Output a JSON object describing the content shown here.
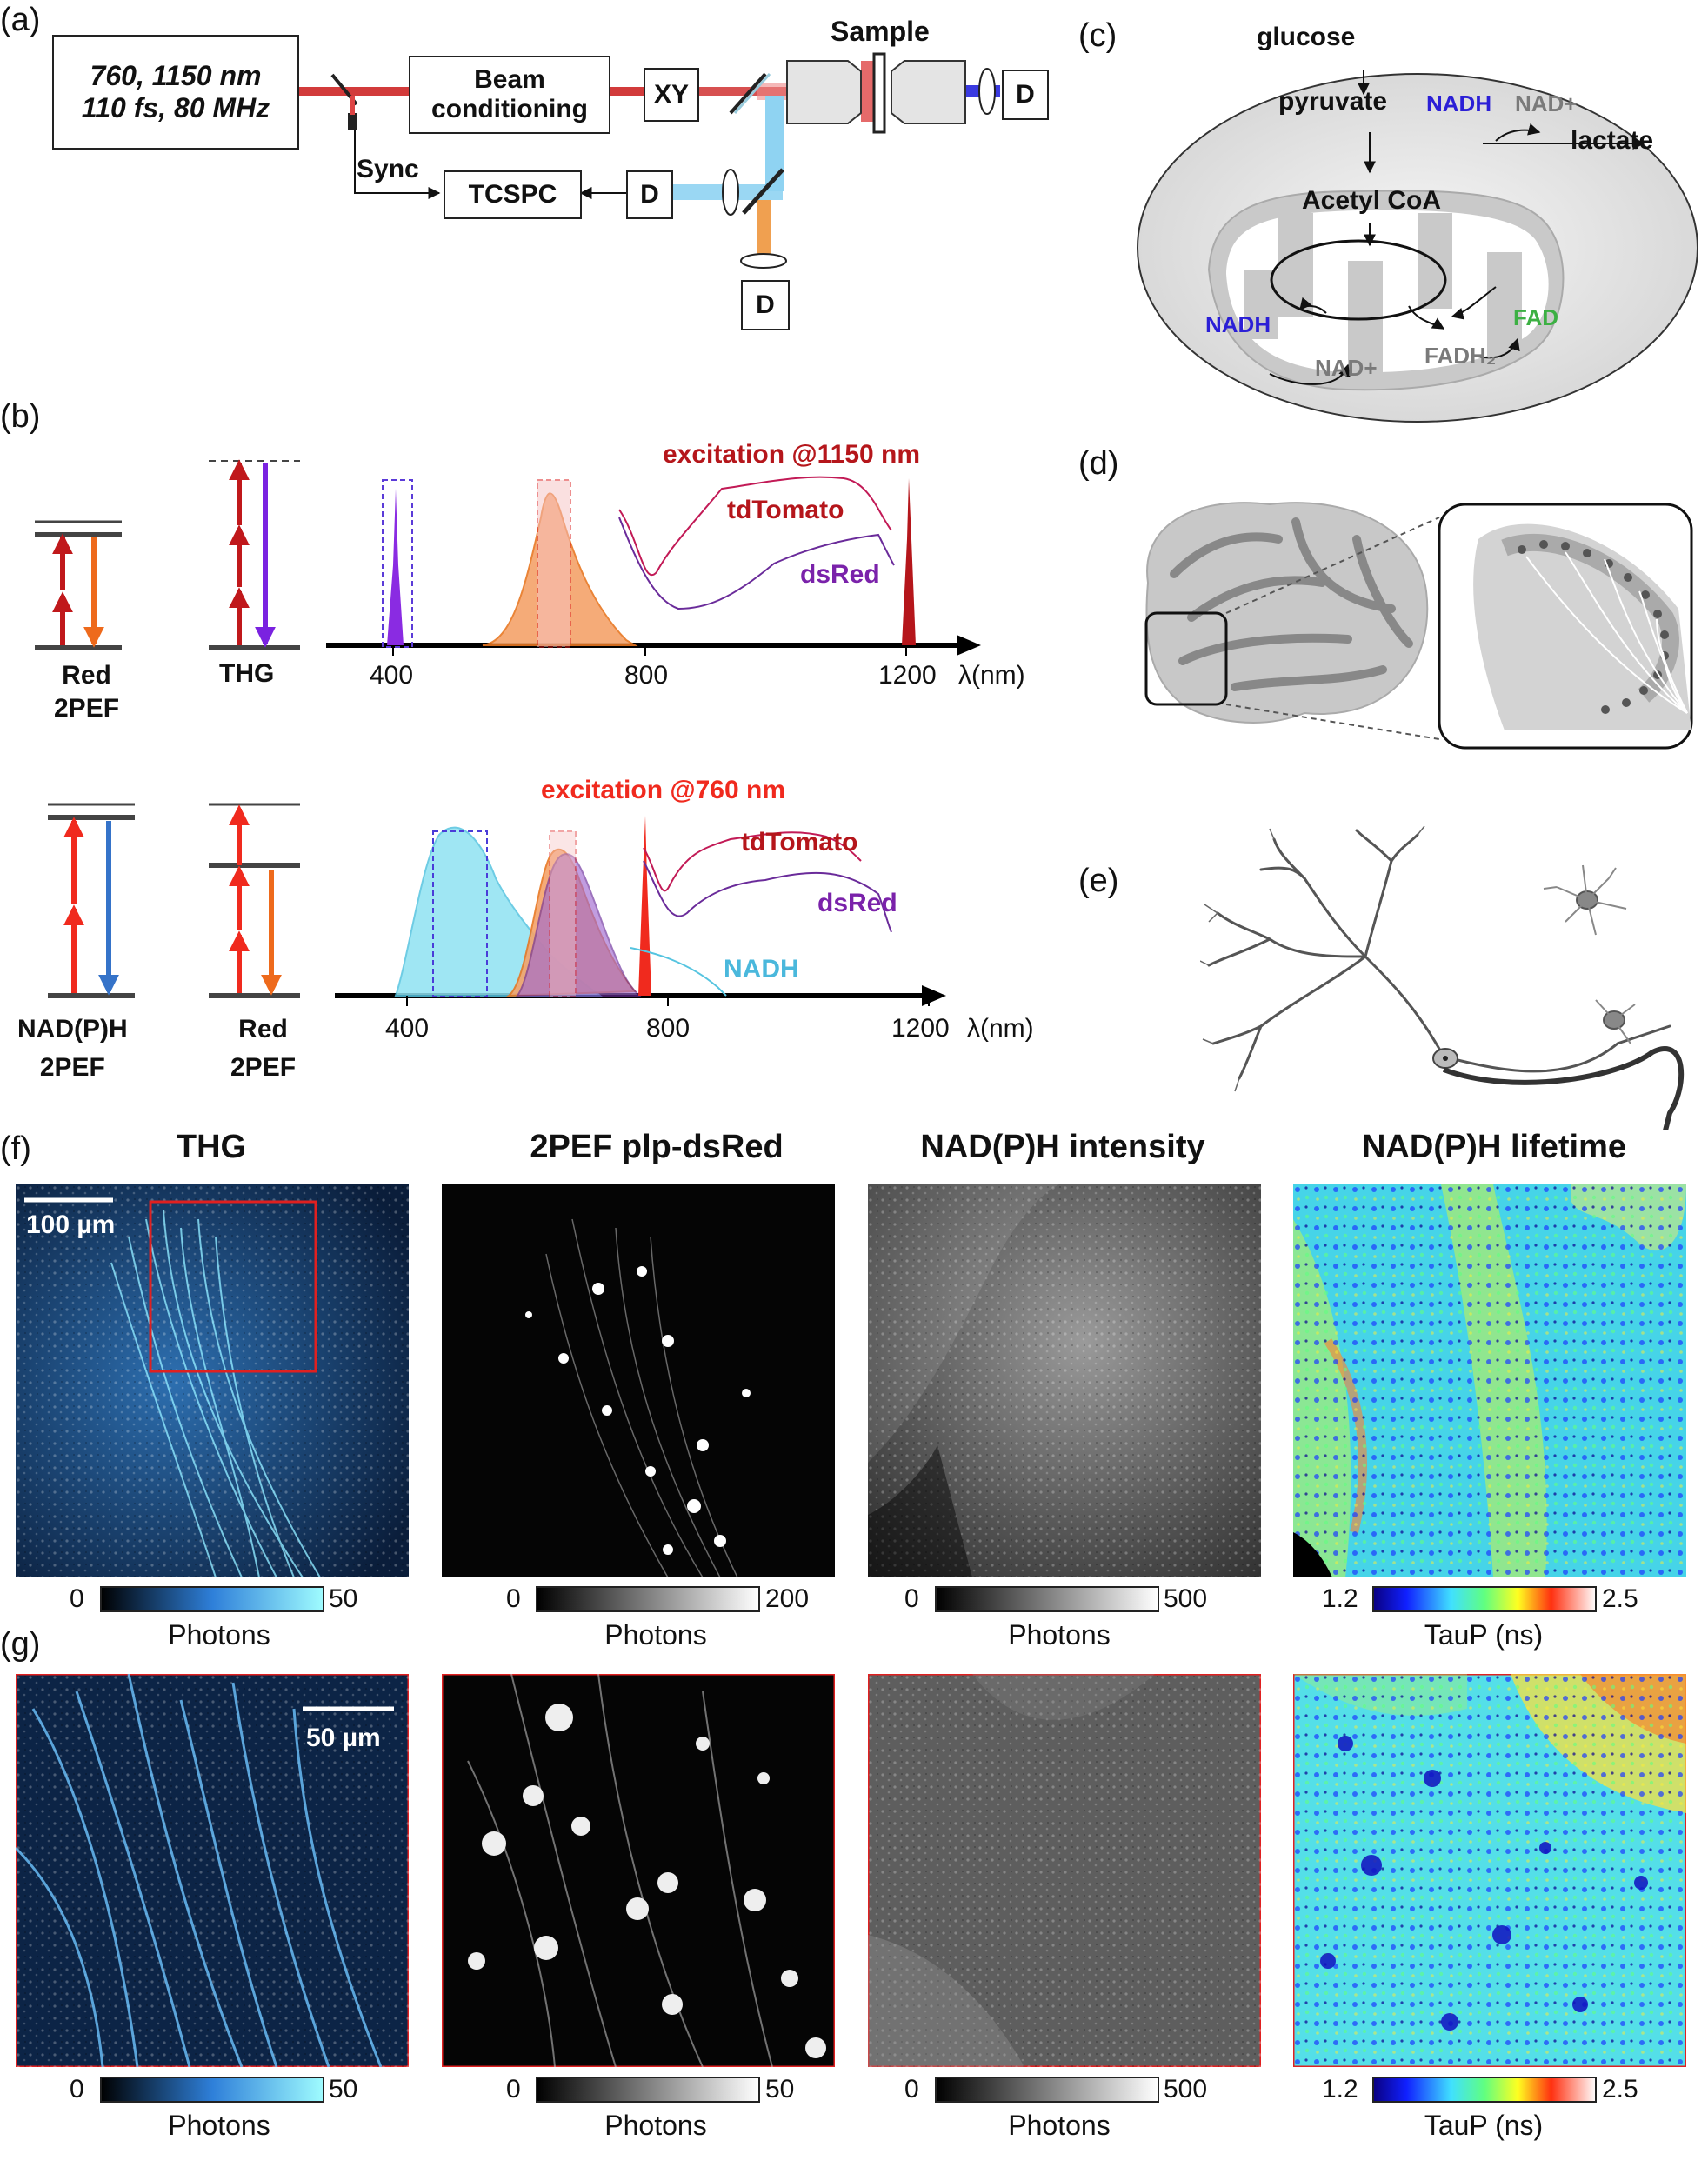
{
  "panels": {
    "a": "(a)",
    "b": "(b)",
    "c": "(c)",
    "d": "(d)",
    "e": "(e)",
    "f": "(f)",
    "g": "(g)"
  },
  "setup": {
    "laser_line1": "760, 1150 nm",
    "laser_line2": "110 fs, 80 MHz",
    "beam_line1": "Beam",
    "beam_line2": "conditioning",
    "xy": "XY",
    "sample": "Sample",
    "sync": "Sync",
    "tcspc": "TCSPC",
    "detector": "D"
  },
  "energy": {
    "red_2pef_top": [
      "Red",
      "2PEF"
    ],
    "thg": "THG",
    "nadph_2pef": [
      "NAD(P)H",
      "2PEF"
    ],
    "red_2pef_bottom": [
      "Red",
      "2PEF"
    ]
  },
  "spectra_top": {
    "excitation": "excitation @1150 nm",
    "tdtomato": "tdTomato",
    "dsred": "dsRed",
    "ticks": [
      "400",
      "800",
      "1200"
    ],
    "xlabel": "λ(nm)"
  },
  "spectra_bottom": {
    "excitation": "excitation @760 nm",
    "tdtomato": "tdTomato",
    "dsred": "dsRed",
    "nadh": "NADH",
    "ticks": [
      "400",
      "800",
      "1200"
    ],
    "xlabel": "λ(nm)"
  },
  "metabolism": {
    "glucose": "glucose",
    "pyruvate": "pyruvate",
    "nadh_top": "NADH",
    "nad_top": "NAD+",
    "lactate": "lactate",
    "acetyl": "Acetyl CoA",
    "nadh_bottom": "NADH",
    "nad_bottom": "NAD+",
    "fadh2": "FADH₂",
    "fad": "FAD",
    "colors": {
      "nadh": "#2b1fd6",
      "fad": "#3cb043",
      "gray": "#7a7a7a"
    }
  },
  "images": {
    "titles": [
      "THG",
      "2PEF plp-dsRed",
      "NAD(P)H intensity",
      "NAD(P)H lifetime"
    ],
    "scale_f": "100 µm",
    "scale_g": "50 µm",
    "f_colorbars": [
      {
        "min": "0",
        "max": "50",
        "label": "Photons"
      },
      {
        "min": "0",
        "max": "200",
        "label": "Photons"
      },
      {
        "min": "0",
        "max": "500",
        "label": "Photons"
      },
      {
        "min": "1.2",
        "max": "2.5",
        "label": "TauP (ns)"
      }
    ],
    "g_colorbars": [
      {
        "min": "0",
        "max": "50",
        "label": "Photons"
      },
      {
        "min": "0",
        "max": "50",
        "label": "Photons"
      },
      {
        "min": "0",
        "max": "500",
        "label": "Photons"
      },
      {
        "min": "1.2",
        "max": "2.5",
        "label": "TauP (ns)"
      }
    ]
  }
}
